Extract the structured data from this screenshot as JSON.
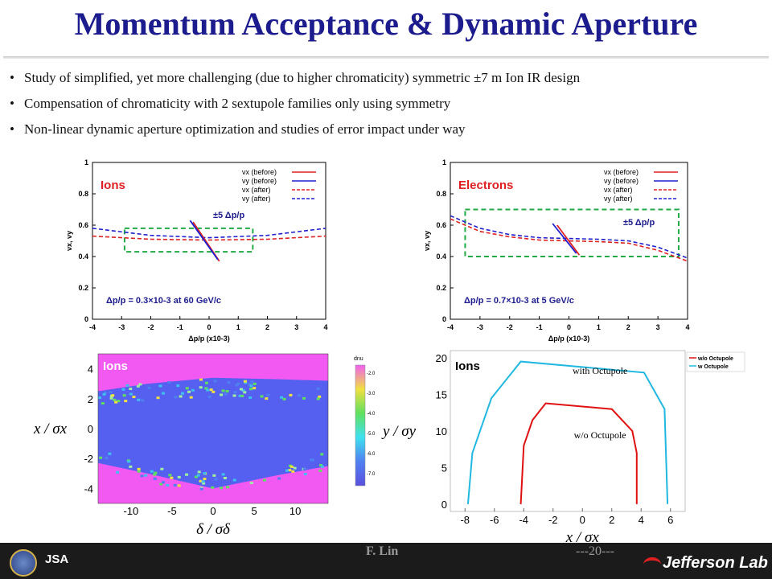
{
  "title": "Momentum Acceptance & Dynamic Aperture",
  "bullets": [
    "Study of simplified, yet more challenging (due to higher chromaticity) symmetric  ±7 m Ion  IR design",
    "Compensation of chromaticity with 2 sextupole families only using symmetry",
    "Non-linear dynamic aperture optimization and studies of error impact under way"
  ],
  "footer": {
    "author": "F. Lin",
    "page": "---20---",
    "logo_text": "Jefferson Lab",
    "jsa_text": "JSA"
  },
  "colors": {
    "title": "#1c1c8e",
    "ions_label": "#e02020",
    "window_box": "#22aa44",
    "series_x": "#e02020",
    "series_y": "#2020d0",
    "da_with": "#20b8e0",
    "da_without": "#e01010",
    "scan_bg": "#f258f2",
    "scan_stable": "#5560f0"
  },
  "chart_data": [
    {
      "type": "line",
      "label": "Ions",
      "annotation": "±5 Δp/p",
      "note": "Δp/p = 0.3×10-3 at 60 GeV/c",
      "xlabel": "Δp/p (x10-3)",
      "ylabel": "νx, νy",
      "xlim": [
        -4,
        4
      ],
      "ylim": [
        0,
        1
      ],
      "xticks": [
        "-4",
        "-3",
        "-2",
        "-1",
        "0",
        "1",
        "2",
        "3",
        "4"
      ],
      "yticks": [
        "0",
        "0.2",
        "0.4",
        "0.6",
        "0.8",
        "1"
      ],
      "legend": [
        "νx (before)",
        "νy (before)",
        "νx (after)",
        "νy (after)"
      ],
      "series": [
        {
          "name": "νx (after)",
          "style": "dashed",
          "color": "#e02020",
          "x": [
            -4,
            -2,
            0,
            2,
            4
          ],
          "y": [
            0.53,
            0.51,
            0.505,
            0.51,
            0.53
          ]
        },
        {
          "name": "νy (after)",
          "style": "dashed",
          "color": "#2020d0",
          "x": [
            -4,
            -2,
            0,
            2,
            4
          ],
          "y": [
            0.58,
            0.535,
            0.52,
            0.535,
            0.58
          ]
        },
        {
          "name": "νx (before)",
          "style": "solid",
          "color": "#e02020",
          "x": [
            -0.55,
            0.35
          ],
          "y": [
            0.62,
            0.37
          ]
        },
        {
          "name": "νy (before)",
          "style": "solid",
          "color": "#2020d0",
          "x": [
            -0.65,
            0.3
          ],
          "y": [
            0.63,
            0.38
          ]
        }
      ]
    },
    {
      "type": "line",
      "label": "Electrons",
      "annotation": "±5 Δp/p",
      "note": "Δp/p = 0.7×10-3 at 5 GeV/c",
      "xlabel": "Δp/p (x10-3)",
      "ylabel": "νx, νy",
      "xlim": [
        -4,
        4
      ],
      "ylim": [
        0,
        1
      ],
      "xticks": [
        "-4",
        "-3",
        "-2",
        "-1",
        "0",
        "1",
        "2",
        "3",
        "4"
      ],
      "yticks": [
        "0",
        "0.2",
        "0.4",
        "0.6",
        "0.8",
        "1"
      ],
      "legend": [
        "νx (before)",
        "νy (before)",
        "νx (after)",
        "νy (after)"
      ],
      "series": [
        {
          "name": "νx (after)",
          "style": "dashed",
          "color": "#e02020",
          "x": [
            -4,
            -3,
            -2,
            -1,
            0,
            1,
            2,
            3,
            4
          ],
          "y": [
            0.64,
            0.56,
            0.525,
            0.505,
            0.5,
            0.495,
            0.485,
            0.44,
            0.37
          ]
        },
        {
          "name": "νy (after)",
          "style": "dashed",
          "color": "#2020d0",
          "x": [
            -4,
            -3,
            -2,
            -1,
            0,
            1,
            2,
            3,
            4
          ],
          "y": [
            0.66,
            0.58,
            0.54,
            0.52,
            0.515,
            0.51,
            0.5,
            0.46,
            0.39
          ]
        },
        {
          "name": "νx (before)",
          "style": "solid",
          "color": "#e02020",
          "x": [
            -0.4,
            0.35
          ],
          "y": [
            0.6,
            0.41
          ]
        },
        {
          "name": "νy (before)",
          "style": "solid",
          "color": "#2020d0",
          "x": [
            -0.55,
            0.25
          ],
          "y": [
            0.61,
            0.42
          ]
        }
      ]
    },
    {
      "type": "heatmap",
      "label": "Ions",
      "xlabel": "δ / σδ",
      "ylabel": "x / σx",
      "xlim": [
        -14,
        14
      ],
      "ylim": [
        -5,
        5
      ],
      "xticks": [
        "-10",
        "-5",
        "0",
        "5",
        "10"
      ],
      "yticks": [
        "-4",
        "-2",
        "0",
        "2",
        "4"
      ],
      "colorbar_title": "dnu",
      "colorbar_ticks": [
        "-2.0",
        "-3.0",
        "-4.0",
        "-5.0",
        "-6.0",
        "-7.0"
      ],
      "stable_region": {
        "top_x": [
          -14,
          -8,
          0,
          8,
          14
        ],
        "top_y": [
          2.5,
          3.0,
          3.4,
          3.3,
          3.2
        ],
        "bottom_x": [
          -14,
          -8,
          0,
          8,
          14
        ],
        "bottom_y": [
          -2.3,
          -3.0,
          -4.0,
          -3.1,
          -2.5
        ]
      }
    },
    {
      "type": "line",
      "label": "Ions",
      "xlabel": "x / σx",
      "ylabel": "y / σy",
      "xlim": [
        -9,
        7
      ],
      "ylim": [
        -1,
        21
      ],
      "xticks": [
        "-8",
        "-6",
        "-4",
        "-2",
        "0",
        "2",
        "4",
        "6"
      ],
      "yticks": [
        "0",
        "5",
        "10",
        "15",
        "20"
      ],
      "legend": [
        "w/o Octupole",
        "w Octupole"
      ],
      "series": [
        {
          "name": "with Octupole",
          "color": "#20b8e0",
          "x": [
            -7.8,
            -7.5,
            -6.2,
            -4.2,
            4.2,
            5.6,
            5.8
          ],
          "y": [
            0,
            7,
            14.5,
            19.5,
            18,
            13,
            0
          ]
        },
        {
          "name": "w/o Octupole",
          "color": "#e01010",
          "x": [
            -4.2,
            -4.0,
            -3.4,
            -2.5,
            2.0,
            3.4,
            3.7,
            3.7
          ],
          "y": [
            0,
            8,
            11.5,
            13.8,
            13,
            10,
            7,
            0
          ]
        }
      ]
    }
  ]
}
